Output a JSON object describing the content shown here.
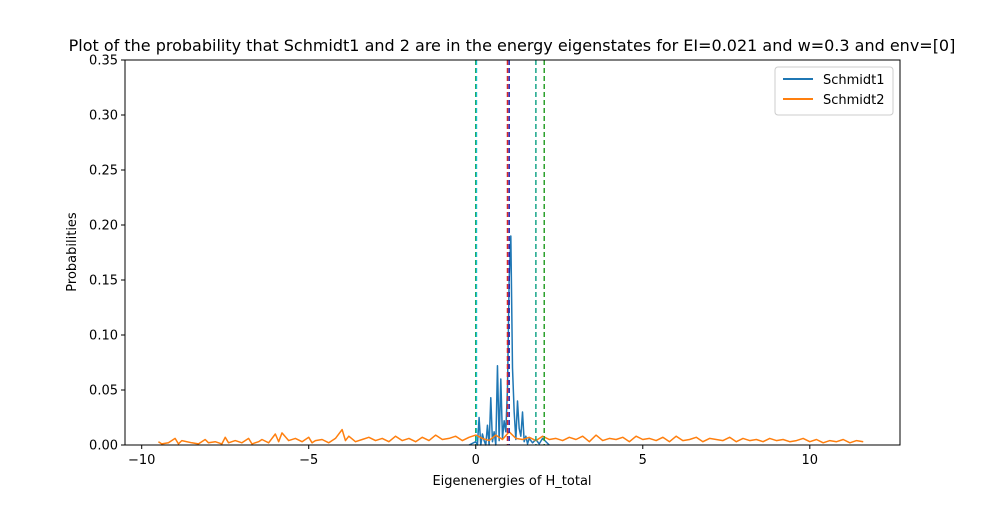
{
  "chart_data": {
    "type": "line",
    "title": "Plot of the probability that Schmidt1 and 2 are in the energy eigenstates for EI=0.021 and w=0.3 and env=[0]",
    "xlabel": "Eigenenergies of H_total",
    "ylabel": "Probabilities",
    "xlim": [
      -10.5,
      12.7
    ],
    "ylim": [
      0,
      0.35
    ],
    "xticks": [
      -10,
      -5,
      0,
      5,
      10
    ],
    "xtick_labels": [
      "−10",
      "−5",
      "0",
      "5",
      "10"
    ],
    "yticks": [
      0.0,
      0.05,
      0.1,
      0.15,
      0.2,
      0.25,
      0.3,
      0.35
    ],
    "ytick_labels": [
      "0.00",
      "0.05",
      "0.10",
      "0.15",
      "0.20",
      "0.25",
      "0.30",
      "0.35"
    ],
    "grid": false,
    "legend": {
      "position": "top-right",
      "entries": [
        "Schmidt1",
        "Schmidt2"
      ]
    },
    "series": [
      {
        "name": "Schmidt1",
        "color": "#1f77b4",
        "x": [
          -0.2,
          0.0,
          0.05,
          0.1,
          0.15,
          0.2,
          0.25,
          0.3,
          0.35,
          0.4,
          0.45,
          0.5,
          0.55,
          0.6,
          0.65,
          0.7,
          0.75,
          0.8,
          0.85,
          0.9,
          0.95,
          1.0,
          1.05,
          1.1,
          1.15,
          1.2,
          1.25,
          1.3,
          1.35,
          1.4,
          1.45,
          1.5,
          1.55,
          1.6,
          1.7,
          1.8,
          1.9,
          2.0,
          2.2
        ],
        "y": [
          0.0,
          0.003,
          0.0,
          0.025,
          0.0,
          0.01,
          0.004,
          0.0,
          0.018,
          0.0,
          0.043,
          0.003,
          0.012,
          0.0,
          0.072,
          0.004,
          0.06,
          0.006,
          0.022,
          0.012,
          0.052,
          0.15,
          0.19,
          0.07,
          0.03,
          0.005,
          0.04,
          0.015,
          0.008,
          0.03,
          0.003,
          0.008,
          0.001,
          0.006,
          0.002,
          0.005,
          0.001,
          0.006,
          0.0
        ]
      },
      {
        "name": "Schmidt2",
        "color": "#ff7f0e",
        "x": [
          -9.5,
          -9.4,
          -9.2,
          -9.0,
          -8.9,
          -8.8,
          -8.5,
          -8.3,
          -8.1,
          -8.0,
          -7.8,
          -7.6,
          -7.5,
          -7.4,
          -7.2,
          -7.0,
          -6.8,
          -6.7,
          -6.5,
          -6.4,
          -6.2,
          -6.0,
          -5.9,
          -5.8,
          -5.6,
          -5.4,
          -5.2,
          -5.0,
          -4.9,
          -4.8,
          -4.6,
          -4.4,
          -4.2,
          -4.0,
          -3.9,
          -3.8,
          -3.6,
          -3.4,
          -3.2,
          -3.0,
          -2.8,
          -2.6,
          -2.4,
          -2.2,
          -2.0,
          -1.8,
          -1.6,
          -1.4,
          -1.2,
          -1.0,
          -0.8,
          -0.6,
          -0.4,
          -0.2,
          0.0,
          0.2,
          0.4,
          0.6,
          0.8,
          1.0,
          1.2,
          1.4,
          1.6,
          1.8,
          2.0,
          2.2,
          2.4,
          2.6,
          2.8,
          3.0,
          3.2,
          3.4,
          3.6,
          3.8,
          4.0,
          4.2,
          4.4,
          4.6,
          4.8,
          5.0,
          5.2,
          5.4,
          5.6,
          5.8,
          6.0,
          6.2,
          6.4,
          6.6,
          6.8,
          7.0,
          7.2,
          7.4,
          7.6,
          7.8,
          8.0,
          8.2,
          8.4,
          8.6,
          8.8,
          9.0,
          9.2,
          9.4,
          9.6,
          9.8,
          10.0,
          10.2,
          10.4,
          10.6,
          10.8,
          11.0,
          11.2,
          11.4,
          11.6
        ],
        "y": [
          0.003,
          0.001,
          0.002,
          0.006,
          0.001,
          0.004,
          0.002,
          0.001,
          0.005,
          0.002,
          0.003,
          0.001,
          0.007,
          0.002,
          0.004,
          0.002,
          0.006,
          0.001,
          0.003,
          0.005,
          0.002,
          0.01,
          0.003,
          0.011,
          0.004,
          0.006,
          0.003,
          0.007,
          0.002,
          0.004,
          0.005,
          0.002,
          0.006,
          0.014,
          0.004,
          0.008,
          0.003,
          0.005,
          0.007,
          0.004,
          0.006,
          0.003,
          0.008,
          0.004,
          0.006,
          0.003,
          0.007,
          0.004,
          0.009,
          0.005,
          0.006,
          0.008,
          0.004,
          0.007,
          0.009,
          0.006,
          0.004,
          0.009,
          0.005,
          0.012,
          0.006,
          0.005,
          0.007,
          0.004,
          0.008,
          0.005,
          0.006,
          0.004,
          0.007,
          0.005,
          0.008,
          0.003,
          0.009,
          0.004,
          0.006,
          0.005,
          0.007,
          0.003,
          0.008,
          0.005,
          0.006,
          0.004,
          0.007,
          0.003,
          0.008,
          0.004,
          0.005,
          0.007,
          0.003,
          0.006,
          0.005,
          0.004,
          0.007,
          0.003,
          0.006,
          0.004,
          0.005,
          0.003,
          0.006,
          0.004,
          0.005,
          0.003,
          0.004,
          0.006,
          0.003,
          0.005,
          0.002,
          0.004,
          0.003,
          0.005,
          0.002,
          0.004,
          0.003
        ]
      }
    ],
    "vertical_lines": [
      {
        "x": 0.0,
        "color": "#2ca02c"
      },
      {
        "x": 0.02,
        "color": "#17becf"
      },
      {
        "x": 0.95,
        "color": "#d62728"
      },
      {
        "x": 1.0,
        "color": "#1f1fb4"
      },
      {
        "x": 1.8,
        "color": "#17a589"
      },
      {
        "x": 2.05,
        "color": "#2ca02c"
      }
    ]
  }
}
